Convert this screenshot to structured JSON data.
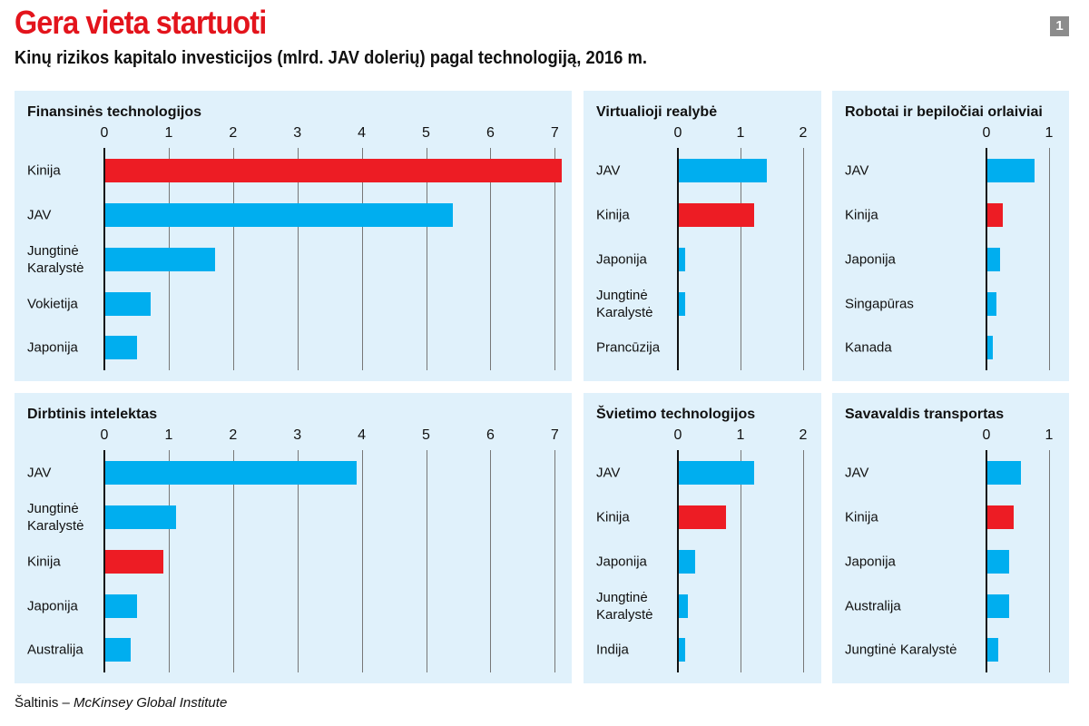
{
  "header": {
    "title": "Gera vieta startuoti",
    "subtitle": "Kinų rizikos kapitalo investicijos (mlrd. JAV dolerių) pagal technologiją, 2016 m.",
    "badge": "1"
  },
  "source": {
    "prefix": "Šaltinis – ",
    "name": "McKinsey Global Institute"
  },
  "colors": {
    "china": "#ed1c24",
    "other": "#00aeef",
    "panel_bg": "#e0f1fb",
    "title": "#e3141c"
  },
  "chart_data": [
    {
      "type": "bar",
      "orientation": "horizontal",
      "title": "Finansinės technologijos",
      "xlim": [
        0,
        7
      ],
      "ticks": [
        "0",
        "1",
        "2",
        "3",
        "4",
        "5",
        "6",
        "7"
      ],
      "categories": [
        "Kinija",
        "JAV",
        "Jungtinė\nKaralystė",
        "Vokietija",
        "Japonija"
      ],
      "values": [
        7.1,
        5.4,
        1.7,
        0.7,
        0.5
      ],
      "highlight": "Kinija",
      "grid": true
    },
    {
      "type": "bar",
      "orientation": "horizontal",
      "title": "Virtualioji realybė",
      "xlim": [
        0,
        2
      ],
      "ticks": [
        "0",
        "1",
        "2"
      ],
      "categories": [
        "JAV",
        "Kinija",
        "Japonija",
        "Jungtinė\nKaralystė",
        "Prancūzija"
      ],
      "values": [
        1.4,
        1.2,
        0.1,
        0.1,
        0
      ],
      "highlight": "Kinija",
      "grid": true
    },
    {
      "type": "bar",
      "orientation": "horizontal",
      "title": "Robotai ir bepiločiai orlaiviai",
      "xlim": [
        0,
        1
      ],
      "ticks": [
        "0",
        "1"
      ],
      "categories": [
        "JAV",
        "Kinija",
        "Japonija",
        "Singapūras",
        "Kanada"
      ],
      "values": [
        0.75,
        0.25,
        0.21,
        0.15,
        0.08
      ],
      "highlight": "Kinija",
      "grid": true
    },
    {
      "type": "bar",
      "orientation": "horizontal",
      "title": "Dirbtinis intelektas",
      "xlim": [
        0,
        7
      ],
      "ticks": [
        "0",
        "1",
        "2",
        "3",
        "4",
        "5",
        "6",
        "7"
      ],
      "categories": [
        "JAV",
        "Jungtinė\nKaralystė",
        "Kinija",
        "Japonija",
        "Australija"
      ],
      "values": [
        3.9,
        1.1,
        0.9,
        0.5,
        0.4
      ],
      "highlight": "Kinija",
      "grid": true
    },
    {
      "type": "bar",
      "orientation": "horizontal",
      "title": "Švietimo technologijos",
      "xlim": [
        0,
        2
      ],
      "ticks": [
        "0",
        "1",
        "2"
      ],
      "categories": [
        "JAV",
        "Kinija",
        "Japonija",
        "Jungtinė\nKaralystė",
        "Indija"
      ],
      "values": [
        1.2,
        0.75,
        0.26,
        0.15,
        0.1
      ],
      "highlight": "Kinija",
      "grid": true
    },
    {
      "type": "bar",
      "orientation": "horizontal",
      "title": "Savavaldis transportas",
      "xlim": [
        0,
        1
      ],
      "ticks": [
        "0",
        "1"
      ],
      "categories": [
        "JAV",
        "Kinija",
        "Japonija",
        "Australija",
        "Jungtinė Karalystė"
      ],
      "values": [
        0.54,
        0.42,
        0.35,
        0.35,
        0.18
      ],
      "highlight": "Kinija",
      "grid": true
    }
  ]
}
